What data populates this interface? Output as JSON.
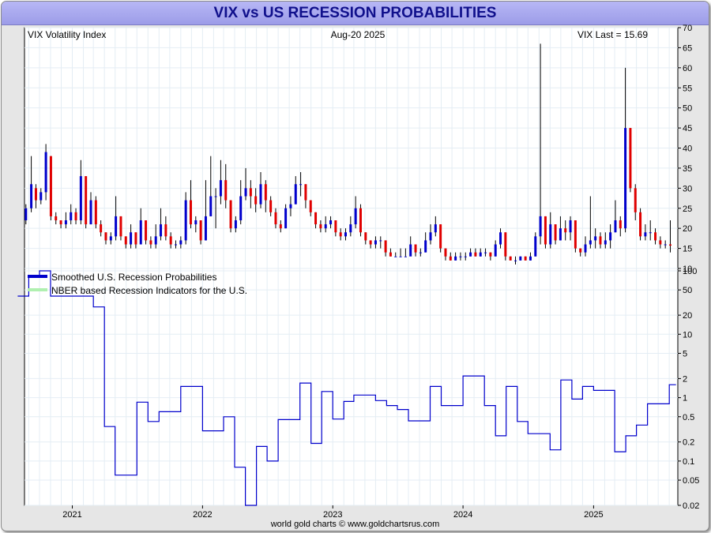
{
  "title": "VIX vs US RECESSION PROBABILITIES",
  "footer": "world gold charts © www.goldchartsrus.com",
  "colors": {
    "up_bar": "#0000cc",
    "down_bar": "#e00000",
    "wick": "#000000",
    "prob_line": "#0000cc",
    "nber_legend": "#b0f0b0"
  },
  "chart_data": [
    {
      "type": "candlestick",
      "name": "VIX Volatility Index",
      "annotations": {
        "left": "VIX Volatility Index",
        "center": "Aug-20  2025",
        "right": "VIX Last = 15.69"
      },
      "ylim": [
        10,
        70
      ],
      "y_ticks": [
        10,
        15,
        20,
        25,
        30,
        35,
        40,
        45,
        50,
        55,
        60,
        65,
        70
      ],
      "grid": true,
      "points": [
        [
          "2020-08-24",
          22,
          25,
          26,
          21
        ],
        [
          "2020-09-08",
          25,
          31,
          38,
          24
        ],
        [
          "2020-09-21",
          30,
          27,
          31,
          25
        ],
        [
          "2020-10-05",
          27,
          29,
          30,
          26
        ],
        [
          "2020-10-19",
          29,
          39,
          41,
          27
        ],
        [
          "2020-11-02",
          38,
          23,
          38,
          22
        ],
        [
          "2020-11-16",
          23,
          22,
          24,
          21
        ],
        [
          "2020-11-30",
          22,
          21,
          22,
          20
        ],
        [
          "2020-12-14",
          21,
          22,
          24,
          20
        ],
        [
          "2020-12-28",
          22,
          24,
          26,
          21
        ],
        [
          "2021-01-11",
          24,
          22,
          25,
          21
        ],
        [
          "2021-01-25",
          22,
          33,
          37,
          21
        ],
        [
          "2021-02-08",
          33,
          21,
          33,
          20
        ],
        [
          "2021-02-22",
          21,
          27,
          29,
          21
        ],
        [
          "2021-03-08",
          27,
          21,
          28,
          20
        ],
        [
          "2021-03-22",
          21,
          19,
          22,
          18
        ],
        [
          "2021-04-05",
          19,
          17,
          19,
          16
        ],
        [
          "2021-04-19",
          17,
          18,
          19,
          16
        ],
        [
          "2021-05-03",
          18,
          23,
          28,
          17
        ],
        [
          "2021-05-17",
          23,
          18,
          23,
          17
        ],
        [
          "2021-05-31",
          18,
          16,
          18,
          15
        ],
        [
          "2021-06-14",
          16,
          19,
          21,
          15
        ],
        [
          "2021-06-28",
          19,
          16,
          19,
          15
        ],
        [
          "2021-07-12",
          16,
          22,
          25,
          16
        ],
        [
          "2021-07-26",
          22,
          17,
          22,
          16
        ],
        [
          "2021-08-09",
          17,
          16,
          18,
          15
        ],
        [
          "2021-08-23",
          16,
          18,
          21,
          15
        ],
        [
          "2021-09-06",
          18,
          21,
          25,
          17
        ],
        [
          "2021-09-20",
          21,
          18,
          23,
          17
        ],
        [
          "2021-10-04",
          18,
          16,
          19,
          15
        ],
        [
          "2021-10-18",
          16,
          16,
          17,
          15
        ],
        [
          "2021-11-01",
          16,
          17,
          18,
          15
        ],
        [
          "2021-11-15",
          17,
          27,
          29,
          16
        ],
        [
          "2021-11-29",
          27,
          21,
          32,
          20
        ],
        [
          "2021-12-13",
          21,
          22,
          23,
          19
        ],
        [
          "2021-12-27",
          22,
          17,
          22,
          16
        ],
        [
          "2022-01-10",
          17,
          23,
          32,
          17
        ],
        [
          "2022-01-24",
          23,
          28,
          38,
          23
        ],
        [
          "2022-02-07",
          28,
          28,
          30,
          20
        ],
        [
          "2022-02-21",
          28,
          32,
          37,
          26
        ],
        [
          "2022-03-07",
          32,
          27,
          36,
          25
        ],
        [
          "2022-03-21",
          27,
          20,
          27,
          19
        ],
        [
          "2022-04-04",
          20,
          22,
          23,
          19
        ],
        [
          "2022-04-18",
          22,
          28,
          32,
          21
        ],
        [
          "2022-05-02",
          28,
          30,
          35,
          27
        ],
        [
          "2022-05-16",
          30,
          28,
          32,
          25
        ],
        [
          "2022-05-30",
          28,
          26,
          30,
          24
        ],
        [
          "2022-06-13",
          26,
          31,
          34,
          25
        ],
        [
          "2022-06-27",
          31,
          27,
          32,
          24
        ],
        [
          "2022-07-11",
          27,
          24,
          28,
          23
        ],
        [
          "2022-07-25",
          24,
          21,
          25,
          20
        ],
        [
          "2022-08-08",
          21,
          20,
          22,
          19
        ],
        [
          "2022-08-22",
          20,
          25,
          26,
          20
        ],
        [
          "2022-09-05",
          25,
          26,
          28,
          23
        ],
        [
          "2022-09-19",
          26,
          31,
          33,
          26
        ],
        [
          "2022-10-03",
          31,
          31,
          34,
          28
        ],
        [
          "2022-10-17",
          31,
          27,
          31,
          25
        ],
        [
          "2022-10-31",
          27,
          24,
          27,
          23
        ],
        [
          "2022-11-14",
          24,
          21,
          24,
          20
        ],
        [
          "2022-11-28",
          21,
          20,
          22,
          19
        ],
        [
          "2022-12-12",
          20,
          21,
          23,
          19
        ],
        [
          "2022-12-26",
          21,
          22,
          23,
          20
        ],
        [
          "2023-01-09",
          22,
          19,
          22,
          18
        ],
        [
          "2023-01-23",
          19,
          18,
          20,
          17
        ],
        [
          "2023-02-06",
          18,
          19,
          20,
          17
        ],
        [
          "2023-02-20",
          19,
          21,
          23,
          18
        ],
        [
          "2023-03-06",
          21,
          25,
          28,
          20
        ],
        [
          "2023-03-20",
          25,
          19,
          26,
          18
        ],
        [
          "2023-04-03",
          19,
          17,
          19,
          16
        ],
        [
          "2023-04-17",
          17,
          16,
          17,
          15
        ],
        [
          "2023-05-01",
          16,
          17,
          18,
          15
        ],
        [
          "2023-05-15",
          17,
          17,
          18,
          15
        ],
        [
          "2023-05-29",
          17,
          14,
          17,
          13
        ],
        [
          "2023-06-12",
          14,
          13,
          15,
          13
        ],
        [
          "2023-06-26",
          13,
          13,
          14,
          13
        ],
        [
          "2023-07-10",
          13,
          13,
          15,
          13
        ],
        [
          "2023-07-24",
          13,
          13,
          15,
          13
        ],
        [
          "2023-08-07",
          13,
          16,
          18,
          14
        ],
        [
          "2023-08-21",
          16,
          14,
          16,
          13
        ],
        [
          "2023-09-04",
          14,
          14,
          15,
          13
        ],
        [
          "2023-09-18",
          14,
          17,
          19,
          14
        ],
        [
          "2023-10-02",
          17,
          19,
          21,
          16
        ],
        [
          "2023-10-16",
          19,
          21,
          23,
          18
        ],
        [
          "2023-10-30",
          21,
          15,
          21,
          14
        ],
        [
          "2023-11-13",
          15,
          13,
          15,
          12
        ],
        [
          "2023-11-27",
          13,
          12,
          14,
          12
        ],
        [
          "2023-12-11",
          12,
          13,
          14,
          12
        ],
        [
          "2023-12-25",
          13,
          13,
          14,
          12
        ],
        [
          "2024-01-08",
          13,
          13,
          14,
          12
        ],
        [
          "2024-01-22",
          13,
          14,
          15,
          13
        ],
        [
          "2024-02-05",
          14,
          13,
          15,
          13
        ],
        [
          "2024-02-19",
          13,
          14,
          15,
          13
        ],
        [
          "2024-03-04",
          14,
          14,
          15,
          13
        ],
        [
          "2024-03-18",
          14,
          13,
          14,
          12
        ],
        [
          "2024-04-01",
          13,
          16,
          17,
          13
        ],
        [
          "2024-04-15",
          16,
          19,
          20,
          15
        ],
        [
          "2024-04-29",
          19,
          13,
          19,
          12
        ],
        [
          "2024-05-13",
          13,
          12,
          13,
          12
        ],
        [
          "2024-05-27",
          12,
          12,
          13,
          11
        ],
        [
          "2024-06-10",
          12,
          13,
          13,
          12
        ],
        [
          "2024-06-24",
          13,
          12,
          13,
          12
        ],
        [
          "2024-07-08",
          12,
          13,
          14,
          12
        ],
        [
          "2024-07-22",
          13,
          18,
          19,
          13
        ],
        [
          "2024-08-05",
          18,
          23,
          66,
          16
        ],
        [
          "2024-08-19",
          23,
          16,
          23,
          15
        ],
        [
          "2024-09-02",
          16,
          21,
          24,
          15
        ],
        [
          "2024-09-16",
          21,
          17,
          21,
          16
        ],
        [
          "2024-09-30",
          17,
          20,
          23,
          17
        ],
        [
          "2024-10-14",
          20,
          19,
          22,
          17
        ],
        [
          "2024-10-28",
          19,
          22,
          23,
          17
        ],
        [
          "2024-11-11",
          22,
          15,
          22,
          14
        ],
        [
          "2024-11-25",
          15,
          14,
          15,
          13
        ],
        [
          "2024-12-09",
          14,
          16,
          18,
          13
        ],
        [
          "2024-12-23",
          16,
          17,
          28,
          15
        ],
        [
          "2025-01-06",
          17,
          18,
          20,
          15
        ],
        [
          "2025-01-20",
          18,
          16,
          19,
          15
        ],
        [
          "2025-02-03",
          16,
          17,
          19,
          15
        ],
        [
          "2025-02-17",
          17,
          19,
          21,
          15
        ],
        [
          "2025-03-03",
          19,
          22,
          27,
          19
        ],
        [
          "2025-03-17",
          22,
          20,
          23,
          18
        ],
        [
          "2025-03-31",
          20,
          45,
          60,
          19
        ],
        [
          "2025-04-14",
          45,
          30,
          45,
          29
        ],
        [
          "2025-04-28",
          30,
          24,
          31,
          22
        ],
        [
          "2025-05-12",
          24,
          18,
          25,
          17
        ],
        [
          "2025-05-26",
          18,
          19,
          21,
          17
        ],
        [
          "2025-06-09",
          19,
          19,
          22,
          17
        ],
        [
          "2025-06-23",
          19,
          17,
          20,
          16
        ],
        [
          "2025-07-07",
          17,
          16,
          18,
          15
        ],
        [
          "2025-07-21",
          16,
          16,
          17,
          15
        ],
        [
          "2025-08-04",
          16,
          15.69,
          22,
          14
        ]
      ]
    },
    {
      "type": "line",
      "name": "Smoothed U.S. Recession Probabilities",
      "legend": [
        "Smoothed U.S. Recession Probabilities",
        "NBER based Recession Indicators for the U.S."
      ],
      "yscale": "log",
      "ylim": [
        0.02,
        100
      ],
      "y_ticks": [
        "100",
        "50",
        "20",
        "10",
        "5",
        "2",
        "1",
        "0.5",
        "0.2",
        "0.1",
        "0.05",
        "0.02"
      ],
      "x_ticks": [
        "2021",
        "2022",
        "2023",
        "2024",
        "2025"
      ],
      "points": [
        [
          "2020-08-01",
          40
        ],
        [
          "2020-09-01",
          83
        ],
        [
          "2020-10-01",
          100
        ],
        [
          "2020-11-01",
          40
        ],
        [
          "2020-12-01",
          40
        ],
        [
          "2021-01-01",
          40
        ],
        [
          "2021-02-01",
          40
        ],
        [
          "2021-03-01",
          27
        ],
        [
          "2021-04-01",
          0.35
        ],
        [
          "2021-05-01",
          0.06
        ],
        [
          "2021-06-01",
          0.06
        ],
        [
          "2021-07-01",
          0.85
        ],
        [
          "2021-08-01",
          0.42
        ],
        [
          "2021-09-01",
          0.6
        ],
        [
          "2021-10-01",
          0.6
        ],
        [
          "2021-11-01",
          1.5
        ],
        [
          "2021-12-01",
          1.5
        ],
        [
          "2022-01-01",
          0.3
        ],
        [
          "2022-02-01",
          0.3
        ],
        [
          "2022-03-01",
          0.5
        ],
        [
          "2022-04-01",
          0.08
        ],
        [
          "2022-05-01",
          0.02
        ],
        [
          "2022-06-01",
          0.17
        ],
        [
          "2022-07-01",
          0.1
        ],
        [
          "2022-08-01",
          0.45
        ],
        [
          "2022-09-01",
          0.45
        ],
        [
          "2022-10-01",
          1.7
        ],
        [
          "2022-11-01",
          0.19
        ],
        [
          "2022-12-01",
          1.25
        ],
        [
          "2023-01-01",
          0.46
        ],
        [
          "2023-02-01",
          0.87
        ],
        [
          "2023-03-01",
          1.1
        ],
        [
          "2023-04-01",
          1.1
        ],
        [
          "2023-05-01",
          0.9
        ],
        [
          "2023-06-01",
          0.75
        ],
        [
          "2023-07-01",
          0.65
        ],
        [
          "2023-08-01",
          0.43
        ],
        [
          "2023-09-01",
          0.43
        ],
        [
          "2023-10-01",
          1.5
        ],
        [
          "2023-11-01",
          0.75
        ],
        [
          "2023-12-01",
          0.75
        ],
        [
          "2024-01-01",
          2.2
        ],
        [
          "2024-02-01",
          2.2
        ],
        [
          "2024-03-01",
          0.75
        ],
        [
          "2024-04-01",
          0.25
        ],
        [
          "2024-05-01",
          1.5
        ],
        [
          "2024-06-01",
          0.42
        ],
        [
          "2024-07-01",
          0.27
        ],
        [
          "2024-08-01",
          0.27
        ],
        [
          "2024-09-01",
          0.15
        ],
        [
          "2024-10-01",
          1.9
        ],
        [
          "2024-11-01",
          0.95
        ],
        [
          "2024-12-01",
          1.5
        ],
        [
          "2025-01-01",
          1.3
        ],
        [
          "2025-02-01",
          1.3
        ],
        [
          "2025-03-01",
          0.14
        ],
        [
          "2025-04-01",
          0.25
        ],
        [
          "2025-05-01",
          0.37
        ],
        [
          "2025-06-01",
          0.8
        ],
        [
          "2025-07-01",
          0.8
        ],
        [
          "2025-08-01",
          1.6
        ]
      ]
    }
  ]
}
